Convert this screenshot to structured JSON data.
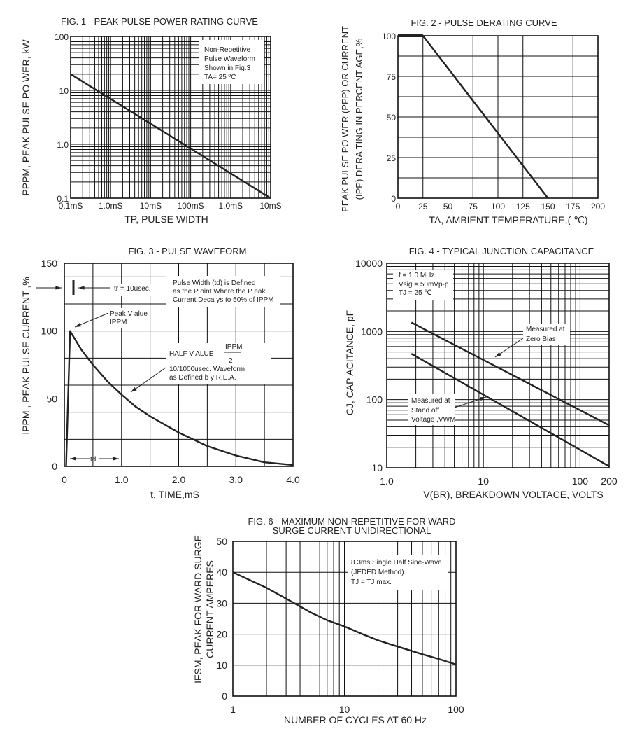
{
  "chart_data": [
    {
      "id": "fig1",
      "type": "line",
      "title": [
        "FIG. 1 - PEAK PULSE POWER RATING CURVE"
      ],
      "xlabel": [
        "TP, PULSE WIDTH"
      ],
      "ylabel": [
        "PPPM, PEAK PULSE PO   WER, kW"
      ],
      "xscale": "log",
      "yscale": "log",
      "xlim": [
        0.1,
        10000
      ],
      "ylim": [
        0.1,
        100
      ],
      "xticks": [
        0.1,
        1,
        10,
        100,
        1000,
        10000
      ],
      "xtick_labels": [
        "0.1mS",
        "1.0mS",
        "10mS",
        "100mS",
        "1.0mS",
        "10mS"
      ],
      "yticks": [
        0.1,
        1,
        10,
        100
      ],
      "ytick_labels": [
        "0.1",
        "1.0",
        "10",
        "100"
      ],
      "grid": true,
      "series": [
        {
          "x": [
            0.1,
            10000
          ],
          "y": [
            20,
            0.1
          ]
        }
      ],
      "annotations": [
        "Non-Repetitive",
        "Pulse Waveform",
        "Shown in Fig.3",
        "TA= 25 ºC"
      ]
    },
    {
      "id": "fig2",
      "type": "line",
      "title": [
        "FIG. 2 - PULSE DERATING CURVE"
      ],
      "xlabel": [
        "TA, AMBIENT   TEMPERATURE,(  ℃)"
      ],
      "ylabel": [
        "PEAK PULSE PO   WER (PPP) OR CURRENT",
        "(IPP) DERA TING IN PERCENT   AGE,%"
      ],
      "xscale": "linear",
      "yscale": "linear",
      "xlim": [
        0,
        200
      ],
      "ylim": [
        0,
        100
      ],
      "xticks": [
        0,
        25,
        50,
        75,
        100,
        125,
        150,
        175,
        200
      ],
      "xtick_labels": [
        "0",
        "25",
        "50",
        "75",
        "100",
        "125",
        "150",
        "175",
        "200"
      ],
      "yticks": [
        0,
        25,
        50,
        75,
        100
      ],
      "ytick_labels": [
        "0",
        "25",
        "50",
        "75",
        "100"
      ],
      "grid": true,
      "series": [
        {
          "x": [
            0,
            25,
            150
          ],
          "y": [
            100,
            100,
            0
          ]
        }
      ],
      "annotations": []
    },
    {
      "id": "fig3",
      "type": "line",
      "title": [
        "FIG. 3 - PULSE  WAVEFORM"
      ],
      "xlabel": [
        "t, TIME,mS"
      ],
      "ylabel": [
        "IPPM , PEAK PULSE CURRENT   ,%"
      ],
      "xscale": "linear",
      "yscale": "linear",
      "xlim": [
        0,
        4.0
      ],
      "ylim": [
        0,
        150
      ],
      "xticks": [
        0,
        1,
        2,
        3,
        4
      ],
      "xtick_labels": [
        "0",
        "1.0",
        "2.0",
        "3.0",
        "4.0"
      ],
      "yticks": [
        0,
        50,
        100,
        150
      ],
      "ytick_labels": [
        "0",
        "50",
        "100",
        "150"
      ],
      "grid": true,
      "series": [
        {
          "x": [
            0.03,
            0.1,
            0.3,
            0.5,
            0.75,
            1.0,
            1.25,
            1.5,
            2.0,
            2.5,
            3.0,
            3.5,
            4.0
          ],
          "y": [
            0,
            100,
            86,
            75,
            63,
            53,
            44,
            37,
            25,
            15,
            8,
            3,
            1
          ]
        }
      ],
      "annotations": [
        "tr = 10usec.",
        "Pulse  Width (td) is Defined",
        "as the P oint  Where the P  eak",
        "Current Deca  ys to 50% of IPPM",
        "Peak V alue",
        "IPPM",
        "HALF V ALUE",
        "IPPM",
        "2",
        "10/1000usec.   Waveform",
        "as Defined b   y R.E.A.",
        "td"
      ]
    },
    {
      "id": "fig4",
      "type": "line",
      "title": [
        "FIG. 4 -  TYPICAL JUNCTION CAPACITANCE"
      ],
      "xlabel": [
        "V(BR),  BREAKDOWN VOLTACE, VOLTS"
      ],
      "ylabel": [
        "CJ, CAP ACITANCE, pF"
      ],
      "xscale": "log",
      "yscale": "log",
      "xlim": [
        1,
        200
      ],
      "ylim": [
        10,
        10000
      ],
      "xticks": [
        1,
        10,
        100,
        200
      ],
      "xtick_labels": [
        "1.0",
        "10",
        "100",
        "200"
      ],
      "yticks": [
        10,
        100,
        1000,
        10000
      ],
      "ytick_labels": [
        "10",
        "100",
        "1000",
        "10000"
      ],
      "grid": true,
      "series": [
        {
          "name": "Measured at Zero Bias",
          "x": [
            1.8,
            200
          ],
          "y": [
            1350,
            42
          ]
        },
        {
          "name": "Measured at Stand off Voltage ,VWM",
          "x": [
            1.8,
            200
          ],
          "y": [
            470,
            10.5
          ]
        }
      ],
      "annotations": [
        "f = 1.0 MHz",
        "Vsig = 50mVp-p",
        "TJ = 25  ℃",
        "Measured at",
        "Zero Bias",
        "Measured at",
        "Stand off",
        "Voltage ,VWM"
      ]
    },
    {
      "id": "fig6",
      "type": "line",
      "title": [
        "FIG. 6 - MAXIMUM NON-REPETITIVE FOR  WARD",
        "SURGE CURRENT UNIDIRECTIONAL"
      ],
      "xlabel": [
        "NUMBER OF CYCLES AT 60 Hz"
      ],
      "ylabel": [
        "IFSM, PEAK FOR  WARD SURGE",
        "CURRENT AMPERES"
      ],
      "xscale": "log",
      "yscale": "linear",
      "xlim": [
        1,
        100
      ],
      "ylim": [
        0,
        50
      ],
      "xticks": [
        1,
        10,
        100
      ],
      "xtick_labels": [
        "1",
        "10",
        "100"
      ],
      "yticks": [
        0,
        10,
        20,
        30,
        40,
        50
      ],
      "ytick_labels": [
        "0",
        "10",
        "20",
        "30",
        "40",
        "50"
      ],
      "grid": true,
      "series": [
        {
          "x": [
            1,
            2,
            3,
            5,
            7,
            10,
            15,
            20,
            30,
            50,
            70,
            100
          ],
          "y": [
            40,
            35,
            31.5,
            27,
            24.5,
            22.5,
            19.8,
            18,
            16,
            13.5,
            12,
            10.2
          ]
        }
      ],
      "annotations": [
        "8.3ms Single Half Sine-Wave",
        "(JEDED Method)",
        "TJ = TJ max."
      ]
    }
  ]
}
